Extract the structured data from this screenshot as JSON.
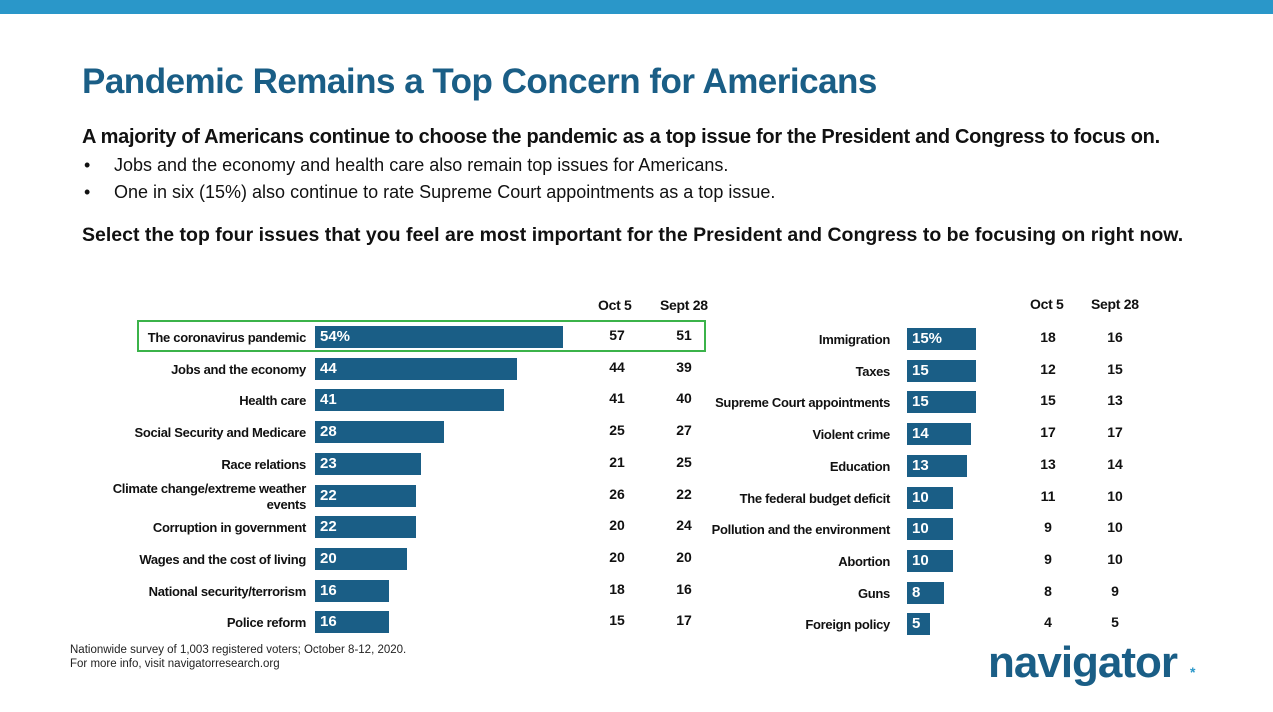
{
  "header": {
    "title": "Pandemic Remains a Top Concern for Americans",
    "subtitle": "A majority of Americans continue to choose the pandemic as a top issue for the President and Congress to focus on.",
    "bullets": [
      "Jobs and the economy and health care also remain top issues for Americans.",
      "One in six (15%) also continue to rate Supreme Court appointments as a top issue."
    ],
    "bullet_glyph": "•",
    "question": "Select the top four issues that you feel are most important for the President and Congress to be focusing on right now."
  },
  "columns": {
    "oct5": "Oct 5",
    "sept28": "Sept 28"
  },
  "chart_data": [
    {
      "type": "bar",
      "orientation": "horizontal",
      "categories": [
        "The coronavirus pandemic",
        "Jobs and the economy",
        "Health care",
        "Social Security and Medicare",
        "Race relations",
        "Climate change/extreme weather events",
        "Corruption in government",
        "Wages and the cost of living",
        "National security/terrorism",
        "Police reform"
      ],
      "values": [
        54,
        44,
        41,
        28,
        23,
        22,
        22,
        20,
        16,
        16
      ],
      "value_labels": [
        "54%",
        "44",
        "41",
        "28",
        "23",
        "22",
        "22",
        "20",
        "16",
        "16"
      ],
      "comparison": {
        "Oct 5": [
          57,
          44,
          41,
          25,
          21,
          26,
          20,
          20,
          18,
          15
        ],
        "Sept 28": [
          51,
          39,
          40,
          27,
          25,
          22,
          24,
          20,
          16,
          17
        ]
      },
      "highlighted_category": "The coronavirus pandemic",
      "bar_color": "#1a5e86",
      "highlight_color": "#3bb34a"
    },
    {
      "type": "bar",
      "orientation": "horizontal",
      "categories": [
        "Immigration",
        "Taxes",
        "Supreme Court appointments",
        "Violent crime",
        "Education",
        "The federal budget deficit",
        "Pollution and the environment",
        "Abortion",
        "Guns",
        "Foreign policy"
      ],
      "values": [
        15,
        15,
        15,
        14,
        13,
        10,
        10,
        10,
        8,
        5
      ],
      "value_labels": [
        "15%",
        "15",
        "15",
        "14",
        "13",
        "10",
        "10",
        "10",
        "8",
        "5"
      ],
      "comparison": {
        "Oct 5": [
          18,
          12,
          15,
          17,
          13,
          11,
          9,
          9,
          8,
          4
        ],
        "Sept 28": [
          16,
          15,
          13,
          17,
          14,
          10,
          10,
          10,
          9,
          5
        ]
      },
      "bar_color": "#1a5e86"
    }
  ],
  "footer": {
    "line1": "Nationwide survey of 1,003 registered voters; October 8-12, 2020.",
    "line2": "For more info, visit navigatorresearch.org",
    "logo_text": "navigator",
    "logo_mark": "*"
  },
  "colors": {
    "accent_bar": "#2a97c9",
    "brand": "#1a5e86"
  }
}
